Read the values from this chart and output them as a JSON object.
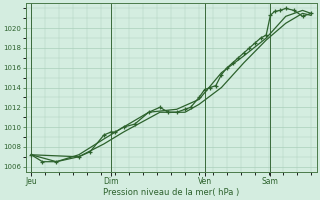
{
  "xlabel": "Pression niveau de la mer( hPa )",
  "background_color": "#d4ede0",
  "plot_bg_color": "#d4ede0",
  "grid_color": "#aacfba",
  "line_color": "#2d622d",
  "tick_label_color": "#2d622d",
  "axis_label_color": "#2d622d",
  "spine_color": "#4a7a4a",
  "ylim": [
    1005.5,
    1022.5
  ],
  "yticks": [
    1006,
    1008,
    1010,
    1012,
    1014,
    1016,
    1018,
    1020
  ],
  "day_labels": [
    "Jeu",
    "Dim",
    "Ven",
    "Sam"
  ],
  "day_positions": [
    0.0,
    0.285,
    0.62,
    0.855
  ],
  "vline_color_dark": "#3a6a3a",
  "series1_x": [
    0.0,
    0.04,
    0.09,
    0.17,
    0.21,
    0.26,
    0.285,
    0.3,
    0.33,
    0.37,
    0.42,
    0.46,
    0.49,
    0.52,
    0.55,
    0.57,
    0.6,
    0.62,
    0.64,
    0.66,
    0.68,
    0.7,
    0.72,
    0.74,
    0.76,
    0.78,
    0.8,
    0.82,
    0.84,
    0.855,
    0.87,
    0.89,
    0.91,
    0.94,
    0.97,
    1.0
  ],
  "series1_y": [
    1007.2,
    1006.5,
    1006.5,
    1007.0,
    1007.5,
    1009.2,
    1009.5,
    1009.5,
    1010.0,
    1010.3,
    1011.5,
    1012.0,
    1011.5,
    1011.5,
    1011.8,
    1012.0,
    1013.0,
    1013.8,
    1014.0,
    1014.2,
    1015.3,
    1016.0,
    1016.5,
    1017.0,
    1017.5,
    1018.0,
    1018.5,
    1019.0,
    1019.3,
    1021.3,
    1021.7,
    1021.8,
    1022.0,
    1021.8,
    1021.2,
    1021.5
  ],
  "series2_x": [
    0.0,
    0.09,
    0.17,
    0.26,
    0.33,
    0.42,
    0.52,
    0.6,
    0.68,
    0.76,
    0.84,
    0.91,
    0.97,
    1.0
  ],
  "series2_y": [
    1007.2,
    1006.5,
    1007.2,
    1008.8,
    1010.0,
    1011.5,
    1011.8,
    1012.8,
    1015.5,
    1017.2,
    1019.0,
    1021.2,
    1021.8,
    1021.5
  ],
  "series3_x": [
    0.0,
    0.17,
    0.26,
    0.33,
    0.46,
    0.55,
    0.6,
    0.68,
    0.76,
    0.84,
    0.91,
    0.97,
    1.0
  ],
  "series3_y": [
    1007.2,
    1007.0,
    1008.3,
    1009.5,
    1011.5,
    1011.5,
    1012.3,
    1014.0,
    1016.5,
    1018.8,
    1020.5,
    1021.5,
    1021.3
  ]
}
